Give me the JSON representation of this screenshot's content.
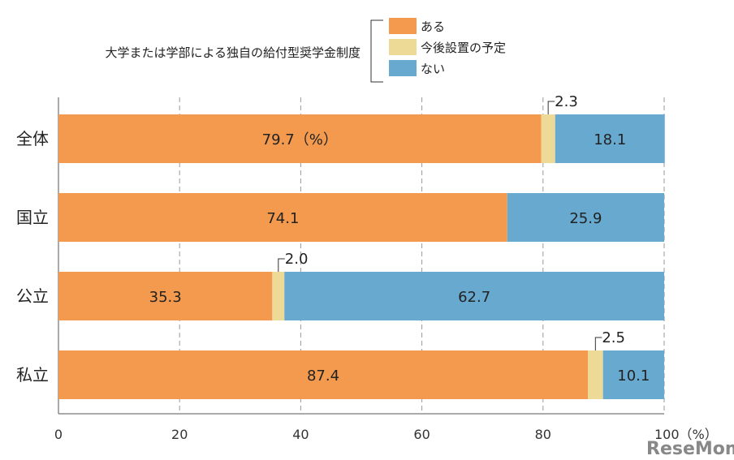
{
  "chart_data": {
    "type": "bar",
    "orientation": "horizontal",
    "stacked": true,
    "title": "大学または学部による独自の給付型奨学金制度",
    "categories": [
      "全体",
      "国立",
      "公立",
      "私立"
    ],
    "series": [
      {
        "name": "ある",
        "color": "#F39A4E",
        "values": [
          79.7,
          74.1,
          35.3,
          87.4
        ]
      },
      {
        "name": "今後設置の予定",
        "color": "#EEDA97",
        "values": [
          2.3,
          0,
          2.0,
          2.5
        ]
      },
      {
        "name": "ない",
        "color": "#67A9CF",
        "values": [
          18.1,
          25.9,
          62.7,
          10.1
        ]
      }
    ],
    "data_labels": [
      [
        "79.7（%）",
        "2.3",
        "18.1"
      ],
      [
        "74.1",
        "",
        "25.9"
      ],
      [
        "35.3",
        "2.0",
        "62.7"
      ],
      [
        "87.4",
        "2.5",
        "10.1"
      ]
    ],
    "xlim": [
      0,
      100
    ],
    "xticks": [
      0,
      20,
      40,
      60,
      80,
      100
    ],
    "xtick_labels": [
      "0",
      "20",
      "40",
      "60",
      "80",
      "100（%）"
    ],
    "grid": true,
    "legend_position": "top-right"
  },
  "watermark": "ReseMom"
}
